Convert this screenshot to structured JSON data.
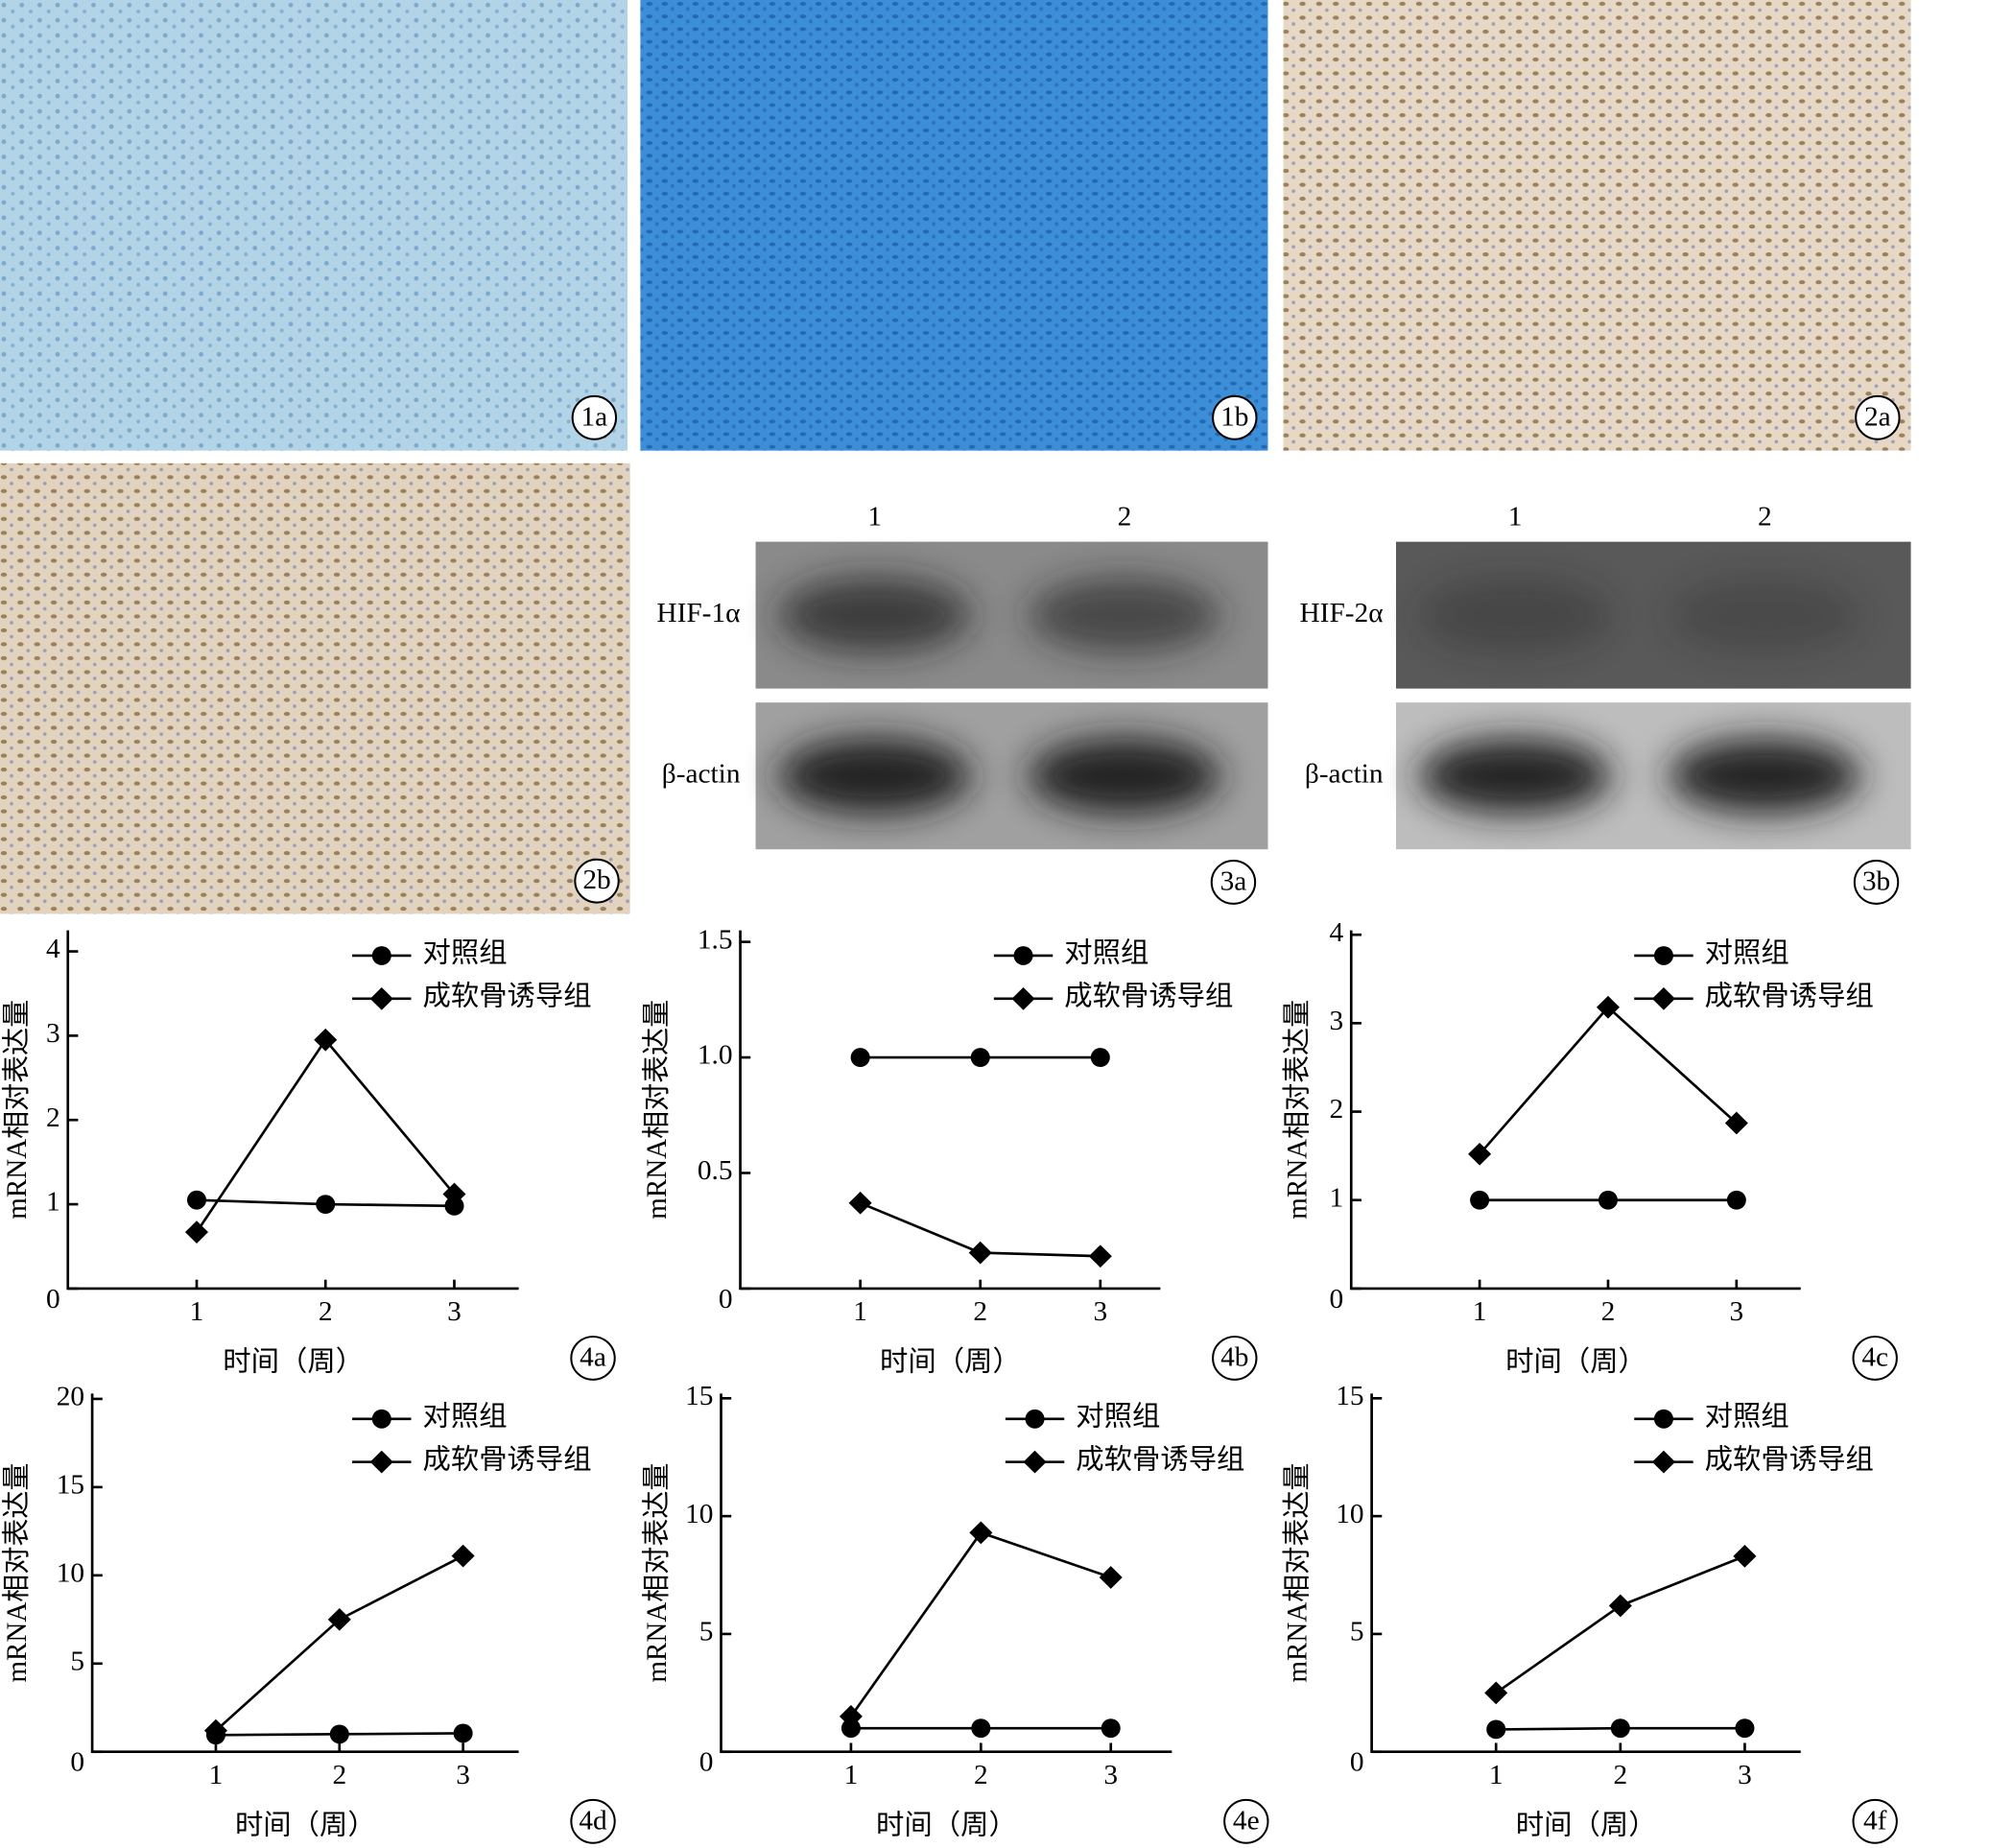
{
  "images": [
    {
      "label": "1a"
    },
    {
      "label": "1b"
    },
    {
      "label": "2a"
    },
    {
      "label": "2b"
    }
  ],
  "blots": [
    {
      "label": "3a",
      "lanes": [
        "1",
        "2"
      ],
      "rows": [
        "HIF-1α",
        "β-actin"
      ]
    },
    {
      "label": "3b",
      "lanes": [
        "1",
        "2"
      ],
      "rows": [
        "HIF-2α",
        "β-actin"
      ]
    }
  ],
  "chart_data": [
    {
      "type": "line",
      "panel_label": "4a",
      "x_label": "时间（周）",
      "y_label": "mRNA相对表达量",
      "x": [
        1,
        2,
        3
      ],
      "xlim": [
        0,
        3.5
      ],
      "xticks": [
        1,
        2,
        3
      ],
      "ylim": [
        0,
        4.25
      ],
      "yticks": [
        0,
        1,
        2,
        3,
        4
      ],
      "series": [
        {
          "name": "对照组",
          "color": "#000000",
          "marker": "circle",
          "values": [
            1.05,
            1.0,
            0.98
          ]
        },
        {
          "name": "成软骨诱导组",
          "color": "#000000",
          "marker": "diamond",
          "values": [
            0.67,
            2.95,
            1.12
          ]
        }
      ]
    },
    {
      "type": "line",
      "panel_label": "4b",
      "x_label": "时间（周）",
      "y_label": "mRNA相对表达量",
      "x": [
        1,
        2,
        3
      ],
      "xlim": [
        0,
        3.5
      ],
      "xticks": [
        1,
        2,
        3
      ],
      "ylim": [
        0,
        1.55
      ],
      "yticks": [
        0,
        {
          "value": 0.5,
          "label": "0.5"
        },
        {
          "value": 1,
          "label": "1.0"
        },
        {
          "value": 1.5,
          "label": "1.5"
        }
      ],
      "series": [
        {
          "name": "对照组",
          "color": "#000000",
          "marker": "circle",
          "values": [
            1.0,
            1.0,
            1.0
          ]
        },
        {
          "name": "成软骨诱导组",
          "color": "#000000",
          "marker": "diamond",
          "values": [
            0.37,
            0.155,
            0.14
          ]
        }
      ]
    },
    {
      "type": "line",
      "panel_label": "4c",
      "x_label": "时间（周）",
      "y_label": "mRNA相对表达量",
      "x": [
        1,
        2,
        3
      ],
      "xlim": [
        0,
        3.5
      ],
      "xticks": [
        1,
        2,
        3
      ],
      "ylim": [
        0,
        4.05
      ],
      "yticks": [
        0,
        1,
        2,
        3,
        4
      ],
      "series": [
        {
          "name": "对照组",
          "color": "#000000",
          "marker": "circle",
          "values": [
            1.0,
            1.0,
            1.0
          ]
        },
        {
          "name": "成软骨诱导组",
          "color": "#000000",
          "marker": "diamond",
          "values": [
            1.52,
            3.18,
            1.87
          ]
        }
      ]
    },
    {
      "type": "line",
      "panel_label": "4d",
      "x_label": "时间（周）",
      "y_label": "mRNA相对表达量",
      "x": [
        1,
        2,
        3
      ],
      "xlim": [
        0,
        3.45
      ],
      "xticks": [
        1,
        2,
        3
      ],
      "ylim": [
        0,
        20.3
      ],
      "yticks": [
        0,
        5,
        10,
        15,
        20
      ],
      "series": [
        {
          "name": "对照组",
          "color": "#000000",
          "marker": "circle",
          "values": [
            0.95,
            1.0,
            1.05
          ]
        },
        {
          "name": "成软骨诱导组",
          "color": "#000000",
          "marker": "diamond",
          "values": [
            1.2,
            7.5,
            11.1
          ]
        }
      ]
    },
    {
      "type": "line",
      "panel_label": "4e",
      "x_label": "时间（周）",
      "y_label": "mRNA相对表达量",
      "x": [
        1,
        2,
        3
      ],
      "xlim": [
        0,
        3.47
      ],
      "xticks": [
        1,
        2,
        3
      ],
      "ylim": [
        0,
        15.2
      ],
      "yticks": [
        0,
        5,
        10,
        15
      ],
      "series": [
        {
          "name": "对照组",
          "color": "#000000",
          "marker": "circle",
          "values": [
            1.0,
            1.0,
            1.0
          ]
        },
        {
          "name": "成软骨诱导组",
          "color": "#000000",
          "marker": "diamond",
          "values": [
            1.5,
            9.3,
            7.4
          ]
        }
      ]
    },
    {
      "type": "line",
      "panel_label": "4f",
      "x_label": "时间（周）",
      "y_label": "mRNA相对表达量",
      "x": [
        1,
        2,
        3
      ],
      "xlim": [
        0,
        3.45
      ],
      "xticks": [
        1,
        2,
        3
      ],
      "ylim": [
        0,
        15.2
      ],
      "yticks": [
        0,
        5,
        10,
        15
      ],
      "series": [
        {
          "name": "对照组",
          "color": "#000000",
          "marker": "circle",
          "values": [
            0.95,
            1.0,
            1.0
          ]
        },
        {
          "name": "成软骨诱导组",
          "color": "#000000",
          "marker": "diamond",
          "values": [
            2.5,
            6.2,
            8.3
          ]
        }
      ]
    }
  ]
}
